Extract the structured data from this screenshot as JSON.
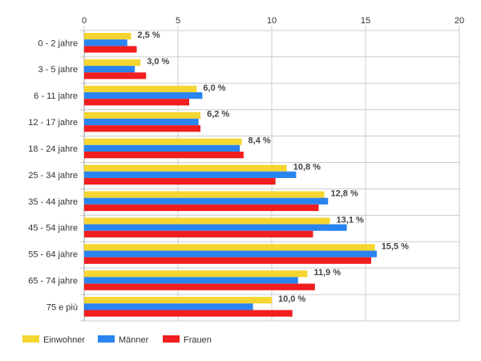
{
  "chart_data": {
    "type": "bar",
    "orientation": "horizontal",
    "categories": [
      "0 - 2 jahre",
      "3 - 5 jahre",
      "6 - 11 jahre",
      "12 - 17 jahre",
      "18 - 24 jahre",
      "25 - 34 jahre",
      "35 - 44 jahre",
      "45 - 54 jahre",
      "55 - 64 jahre",
      "65 - 74 jahre",
      "75 e più"
    ],
    "series": [
      {
        "name": "Einwohner",
        "color": "#f5d530",
        "values": [
          2.5,
          3.0,
          6.0,
          6.2,
          8.4,
          10.8,
          12.8,
          13.1,
          15.5,
          11.9,
          10.0
        ],
        "data_labels": [
          "2,5 %",
          "3,0 %",
          "6,0 %",
          "6,2 %",
          "8,4 %",
          "10,8 %",
          "12,8 %",
          "13,1 %",
          "15,5 %",
          "11,9 %",
          "10,0 %"
        ]
      },
      {
        "name": "Männer",
        "color": "#2a84f0",
        "values": [
          2.3,
          2.7,
          6.3,
          6.1,
          8.3,
          11.3,
          13.0,
          14.0,
          15.6,
          11.4,
          9.0
        ]
      },
      {
        "name": "Frauen",
        "color": "#f01e1e",
        "values": [
          2.8,
          3.3,
          5.6,
          6.2,
          8.5,
          10.2,
          12.5,
          12.2,
          15.3,
          12.3,
          11.1
        ]
      }
    ],
    "xlim": [
      0,
      20
    ],
    "x_ticks": [
      "0",
      "5",
      "10",
      "15",
      "20"
    ],
    "x_tick_values": [
      0,
      5,
      10,
      15,
      20
    ],
    "grid": true,
    "legend_position": "bottom-left"
  }
}
